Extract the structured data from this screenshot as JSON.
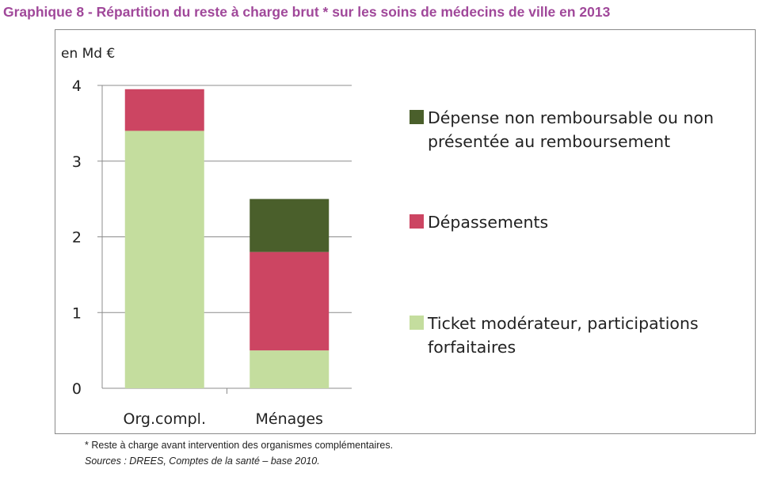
{
  "title": "Graphique 8 - Répartition du reste à charge brut * sur les soins de médecins de ville en 2013",
  "footnote": "* Reste à charge avant intervention des organismes complémentaires.",
  "source": "Sources : DREES, Comptes de la santé – base 2010.",
  "chart_data": {
    "type": "bar",
    "stacked": true,
    "ylabel": "en Md €",
    "ylim": [
      0,
      4
    ],
    "yticks": [
      "0",
      "1",
      "2",
      "3",
      "4"
    ],
    "categories": [
      "Org.compl.",
      "Ménages"
    ],
    "grid": true,
    "legend_position": "right",
    "series": [
      {
        "name": "Ticket modérateur, participations forfaitaires",
        "values": [
          3.4,
          0.5
        ],
        "color": "#c4dd9e"
      },
      {
        "name": "Dépassements",
        "values": [
          0.55,
          1.3
        ],
        "color": "#cc4562"
      },
      {
        "name": "Dépense non remboursable ou non présentée au remboursement",
        "values": [
          0,
          0.7
        ],
        "color": "#4a5f2b"
      }
    ]
  }
}
